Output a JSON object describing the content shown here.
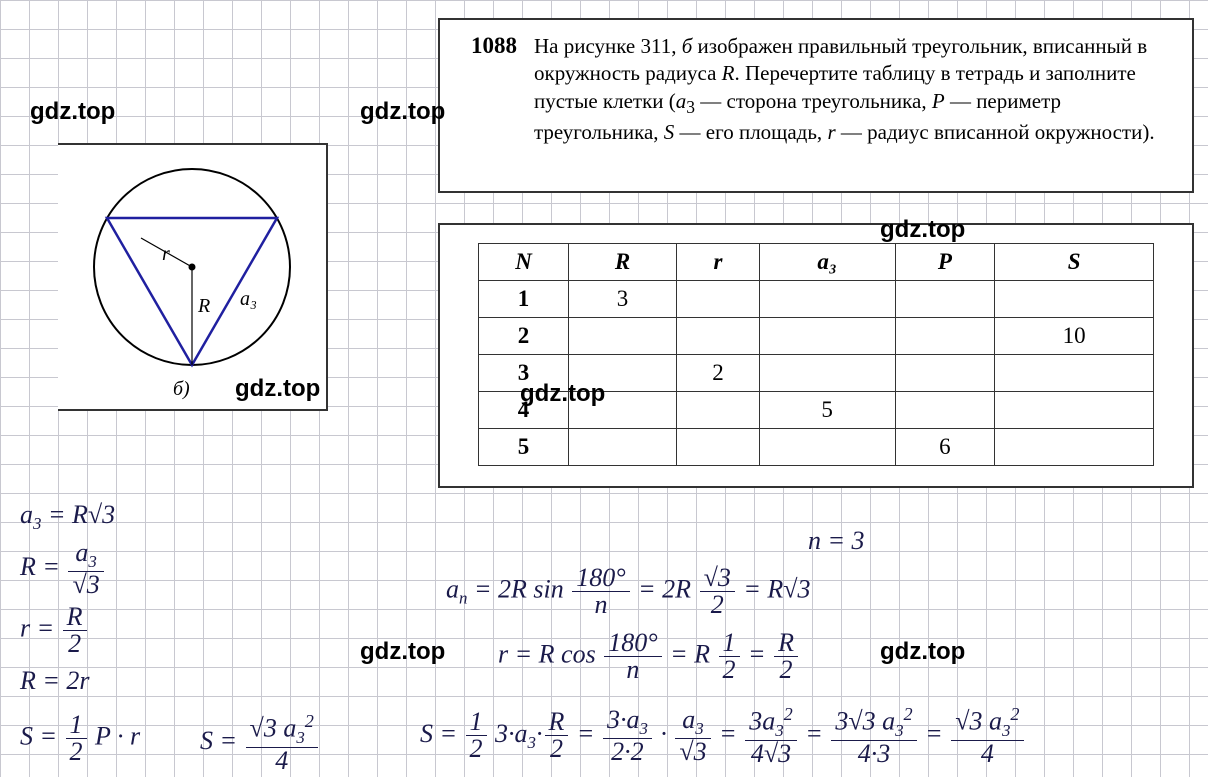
{
  "watermark": "gdz.top",
  "problem": {
    "number": "1088",
    "text_html": "На рисунке 311, <em>б</em> изображен правильный треугольник, вписанный в окружность радиуса <em>R</em>. Перечертите таблицу в тетрадь и заполните пустые клетки (<em>a</em><sub>3</sub> — сторона треугольника, <em>P</em> — периметр треугольника, <em>S</em> — его площадь, <em>r</em> — радиус вписанной окружности)."
  },
  "figure": {
    "label": "б)",
    "r_label": "r",
    "R_label": "R",
    "a3_label": "a₃",
    "circle_color": "#000",
    "triangle_color": "#2020a0",
    "stroke_width": 2
  },
  "table": {
    "headers": [
      "N",
      "R",
      "r",
      "a₃",
      "P",
      "S"
    ],
    "rows": [
      [
        "1",
        "3",
        "",
        "",
        "",
        ""
      ],
      [
        "2",
        "",
        "",
        "",
        "",
        "10"
      ],
      [
        "3",
        "",
        "2",
        "",
        "",
        ""
      ],
      [
        "4",
        "",
        "",
        "5",
        "",
        ""
      ],
      [
        "5",
        "",
        "",
        "",
        "6",
        ""
      ]
    ]
  },
  "handwriting": {
    "hw1": "a<span class='sub'>3</span> = R√3",
    "hw2": "R = <span class='frac'><span class='num'>a<span class='sub'>3</span></span><span class='den'>√3</span></span>",
    "hw3": "r = <span class='frac'><span class='num'>R</span><span class='den'>2</span></span>",
    "hw4": "R = 2r",
    "hw5": "S = <span class='frac'><span class='num'>1</span><span class='den'>2</span></span> P · r",
    "hw6": "S = <span class='frac'><span class='num'>√3 a<span class='sub'>3</span><span class='sup'>2</span></span><span class='den'>4</span></span>",
    "hw7": "n = 3",
    "hw8": "a<span class='sub'>n</span> = 2R sin <span class='frac'><span class='num'>180°</span><span class='den'>n</span></span> = 2R <span class='frac'><span class='num'>√3</span><span class='den'>2</span></span> = R√3",
    "hw9": "r = R cos <span class='frac'><span class='num'>180°</span><span class='den'>n</span></span> = R <span class='frac'><span class='num'>1</span><span class='den'>2</span></span> = <span class='frac'><span class='num'>R</span><span class='den'>2</span></span>",
    "hw10": "S = <span class='frac'><span class='num'>1</span><span class='den'>2</span></span> 3·a<span class='sub'>3</span>·<span class='frac'><span class='num'>R</span><span class='den'>2</span></span> = <span class='frac'><span class='num'>3·a<span class='sub'>3</span></span><span class='den'>2·2</span></span> · <span class='frac'><span class='num'>a<span class='sub'>3</span></span><span class='den'>√3</span></span> = <span class='frac'><span class='num'>3a<span class='sub'>3</span><span class='sup'>2</span></span><span class='den'>4√3</span></span> = <span class='frac'><span class='num'>3√3 a<span class='sub'>3</span><span class='sup'>2</span></span><span class='den'>4·3</span></span> = <span class='frac'><span class='num'>√3 a<span class='sub'>3</span><span class='sup'>2</span></span><span class='den'>4</span></span>"
  }
}
